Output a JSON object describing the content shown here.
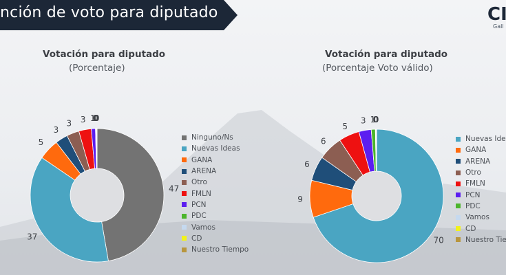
{
  "header": {
    "title": "nción de voto para diputado",
    "logo": "CI",
    "logo_sub": "Gall"
  },
  "colors": {
    "banner": "#1c2737",
    "Ninguno/Ns": "#737373",
    "Nuevas Ideas": "#4aa5c2",
    "GANA": "#ff6a0d",
    "ARENA": "#1f4e79",
    "Otro": "#8c5e52",
    "FMLN": "#ee1111",
    "PCN": "#5c1ef0",
    "PDC": "#4cb52c",
    "Vamos": "#c5d9ef",
    "CD": "#f2f21a",
    "Nuestro Tiempo": "#b8963e"
  },
  "chart_data": [
    {
      "type": "pie",
      "donut": true,
      "title": "Votación para diputado",
      "subtitle": "(Porcentaje)",
      "categories": [
        "Ninguno/Ns",
        "Nuevas Ideas",
        "GANA",
        "ARENA",
        "Otro",
        "FMLN",
        "PCN",
        "PDC",
        "Vamos",
        "CD",
        "Nuestro Tiempo"
      ],
      "values": [
        47,
        37,
        5,
        3,
        3,
        3,
        1,
        0,
        0,
        0,
        0
      ],
      "labels": [
        "47",
        "37",
        "5",
        "3",
        "3",
        "3",
        "1",
        "0",
        "0",
        "0",
        "0"
      ],
      "legend": [
        "Ninguno/Ns",
        "Nuevas Ideas",
        "GANA",
        "ARENA",
        "Otro",
        "FMLN",
        "PCN",
        "PDC",
        "Vamos",
        "CD",
        "Nuestro Tiempo"
      ],
      "legend_placement": "right"
    },
    {
      "type": "pie",
      "donut": true,
      "title": "Votación para diputado",
      "subtitle": "(Porcentaje Voto válido)",
      "categories": [
        "Nuevas Ideas",
        "GANA",
        "ARENA",
        "Otro",
        "FMLN",
        "PCN",
        "PDC",
        "Vamos",
        "CD",
        "Nuestro Tiempo"
      ],
      "values": [
        70,
        9,
        6,
        6,
        5,
        3,
        1,
        0,
        0,
        0
      ],
      "labels": [
        "70",
        "9",
        "6",
        "6",
        "5",
        "3",
        "1",
        "0",
        "0",
        "0"
      ],
      "legend": [
        "Nuevas Ideas",
        "GANA",
        "ARENA",
        "Otro",
        "FMLN",
        "PCN",
        "PDC",
        "Vamos",
        "CD",
        "Nuestro Tiempo"
      ],
      "legend_placement": "right"
    }
  ]
}
